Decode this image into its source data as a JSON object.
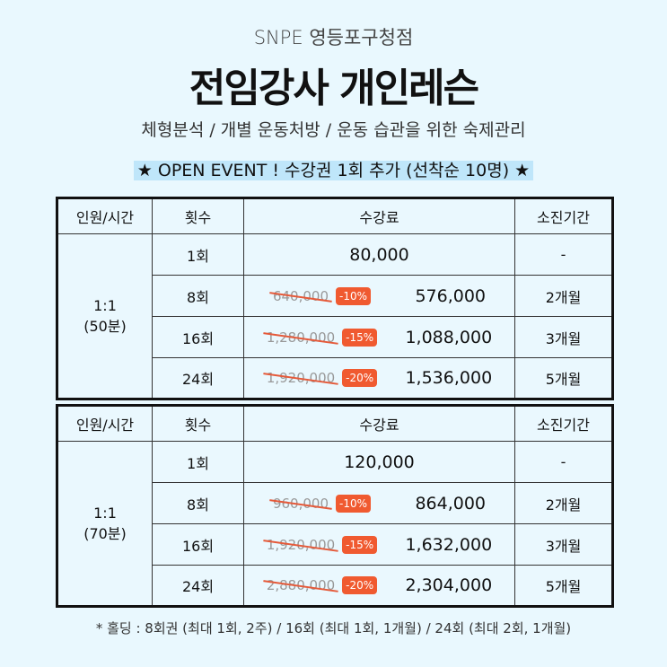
{
  "brand": "SNPE 영등포구청점",
  "title": "전임강사 개인레슨",
  "subtitle": "체형분석 / 개별 운동처방 / 운동 습관을 위한 숙제관리",
  "event": "★ OPEN EVENT ! 수강권 1회 추가 (선착순 10명) ★",
  "headers": [
    "인원/시간",
    "횟수",
    "수강료",
    "소진기간"
  ],
  "tables": [
    {
      "group": "1:1",
      "duration": "(50분)",
      "rows": [
        {
          "count": "1회",
          "price": "80,000",
          "period": "-"
        },
        {
          "count": "8회",
          "old": "640,000",
          "discount": "-10%",
          "price": "576,000",
          "period": "2개월"
        },
        {
          "count": "16회",
          "old": "1,280,000",
          "discount": "-15%",
          "price": "1,088,000",
          "period": "3개월"
        },
        {
          "count": "24회",
          "old": "1,920,000",
          "discount": "-20%",
          "price": "1,536,000",
          "period": "5개월"
        }
      ]
    },
    {
      "group": "1:1",
      "duration": "(70분)",
      "rows": [
        {
          "count": "1회",
          "price": "120,000",
          "period": "-"
        },
        {
          "count": "8회",
          "old": "960,000",
          "discount": "-10%",
          "price": "864,000",
          "period": "2개월"
        },
        {
          "count": "16회",
          "old": "1,920,000",
          "discount": "-15%",
          "price": "1,632,000",
          "period": "3개월"
        },
        {
          "count": "24회",
          "old": "2,880,000",
          "discount": "-20%",
          "price": "2,304,000",
          "period": "5개월"
        }
      ]
    }
  ],
  "note": "* 홀딩 : 8회권 (최대 1회, 2주) / 16회 (최대 1회, 1개월) / 24회 (최대 2회, 1개월)",
  "colors": {
    "background": "#e9f8fe",
    "badge": "#f05a30",
    "highlight": "#bfe6fa"
  }
}
